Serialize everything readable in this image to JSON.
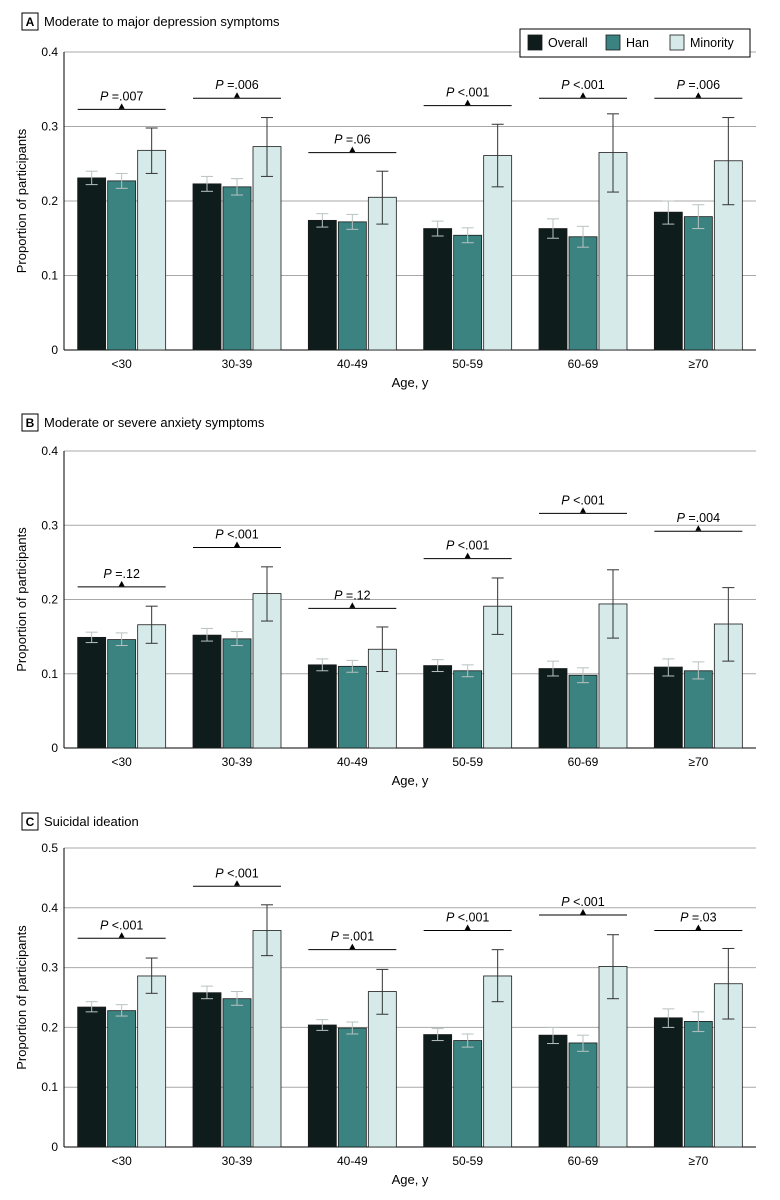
{
  "colors": {
    "Overall": "#0f1c1c",
    "Han": "#3b8380",
    "Minority": "#d6eaea",
    "grid": "#a8a8a8"
  },
  "legend": [
    "Overall",
    "Han",
    "Minority"
  ],
  "chart_data": [
    {
      "type": "bar",
      "letter": "A",
      "title": "Moderate to major depression symptoms",
      "xlabel": "Age, y",
      "ylabel": "Proportion of participants",
      "ylim": [
        0,
        0.4
      ],
      "yticks": [
        "0",
        "0.1",
        "0.2",
        "0.3",
        "0.4"
      ],
      "categories": [
        "<30",
        "30-39",
        "40-49",
        "50-59",
        "60-69",
        "≥70"
      ],
      "series": [
        {
          "name": "Overall",
          "values": [
            0.231,
            0.223,
            0.174,
            0.163,
            0.163,
            0.185
          ],
          "err_low": [
            0.222,
            0.213,
            0.165,
            0.153,
            0.15,
            0.169
          ],
          "err_high": [
            0.24,
            0.233,
            0.183,
            0.173,
            0.176,
            0.2
          ]
        },
        {
          "name": "Han",
          "values": [
            0.227,
            0.219,
            0.172,
            0.154,
            0.152,
            0.179
          ],
          "err_low": [
            0.217,
            0.208,
            0.162,
            0.144,
            0.138,
            0.163
          ],
          "err_high": [
            0.237,
            0.23,
            0.182,
            0.164,
            0.166,
            0.195
          ]
        },
        {
          "name": "Minority",
          "values": [
            0.268,
            0.273,
            0.205,
            0.261,
            0.265,
            0.254
          ],
          "err_low": [
            0.237,
            0.233,
            0.169,
            0.219,
            0.212,
            0.195
          ],
          "err_high": [
            0.298,
            0.312,
            0.24,
            0.303,
            0.317,
            0.312
          ]
        }
      ],
      "pvalues": [
        {
          "p": "P",
          "v": " =.007",
          "y": 0.323
        },
        {
          "p": "P",
          "v": " =.006",
          "y": 0.338
        },
        {
          "p": "P",
          "v": " =.06",
          "y": 0.265
        },
        {
          "p": "P",
          "v": " <.001",
          "y": 0.328
        },
        {
          "p": "P",
          "v": " <.001",
          "y": 0.338
        },
        {
          "p": "P",
          "v": " =.006",
          "y": 0.338
        }
      ]
    },
    {
      "type": "bar",
      "letter": "B",
      "title": "Moderate or severe anxiety symptoms",
      "xlabel": "Age, y",
      "ylabel": "Proportion of participants",
      "ylim": [
        0,
        0.4
      ],
      "yticks": [
        "0",
        "0.1",
        "0.2",
        "0.3",
        "0.4"
      ],
      "categories": [
        "<30",
        "30-39",
        "40-49",
        "50-59",
        "60-69",
        "≥70"
      ],
      "series": [
        {
          "name": "Overall",
          "values": [
            0.149,
            0.152,
            0.112,
            0.111,
            0.107,
            0.109
          ],
          "err_low": [
            0.142,
            0.144,
            0.104,
            0.103,
            0.097,
            0.097
          ],
          "err_high": [
            0.156,
            0.161,
            0.12,
            0.119,
            0.117,
            0.12
          ]
        },
        {
          "name": "Han",
          "values": [
            0.146,
            0.147,
            0.11,
            0.104,
            0.098,
            0.104
          ],
          "err_low": [
            0.138,
            0.138,
            0.102,
            0.096,
            0.088,
            0.093
          ],
          "err_high": [
            0.155,
            0.157,
            0.118,
            0.112,
            0.108,
            0.116
          ]
        },
        {
          "name": "Minority",
          "values": [
            0.166,
            0.208,
            0.133,
            0.191,
            0.194,
            0.167
          ],
          "err_low": [
            0.141,
            0.171,
            0.103,
            0.153,
            0.148,
            0.117
          ],
          "err_high": [
            0.191,
            0.244,
            0.163,
            0.229,
            0.24,
            0.216
          ]
        }
      ],
      "pvalues": [
        {
          "p": "P",
          "v": " =.12",
          "y": 0.217
        },
        {
          "p": "P",
          "v": " <.001",
          "y": 0.27
        },
        {
          "p": "P",
          "v": " =.12",
          "y": 0.188
        },
        {
          "p": "P",
          "v": " <.001",
          "y": 0.255
        },
        {
          "p": "P",
          "v": " <.001",
          "y": 0.316
        },
        {
          "p": "P",
          "v": " =.004",
          "y": 0.292
        }
      ]
    },
    {
      "type": "bar",
      "letter": "C",
      "title": "Suicidal ideation",
      "xlabel": "Age, y",
      "ylabel": "Proportion of participants",
      "ylim": [
        0,
        0.5
      ],
      "yticks": [
        "0",
        "0.1",
        "0.2",
        "0.3",
        "0.4",
        "0.5"
      ],
      "categories": [
        "<30",
        "30-39",
        "40-49",
        "50-59",
        "60-69",
        "≥70"
      ],
      "series": [
        {
          "name": "Overall",
          "values": [
            0.234,
            0.258,
            0.204,
            0.188,
            0.187,
            0.216
          ],
          "err_low": [
            0.226,
            0.248,
            0.195,
            0.178,
            0.173,
            0.2
          ],
          "err_high": [
            0.243,
            0.269,
            0.213,
            0.198,
            0.2,
            0.231
          ]
        },
        {
          "name": "Han",
          "values": [
            0.228,
            0.248,
            0.199,
            0.178,
            0.174,
            0.21
          ],
          "err_low": [
            0.219,
            0.237,
            0.189,
            0.167,
            0.16,
            0.193
          ],
          "err_high": [
            0.238,
            0.26,
            0.209,
            0.189,
            0.187,
            0.226
          ]
        },
        {
          "name": "Minority",
          "values": [
            0.286,
            0.362,
            0.26,
            0.286,
            0.302,
            0.273
          ],
          "err_low": [
            0.257,
            0.32,
            0.222,
            0.243,
            0.248,
            0.214
          ],
          "err_high": [
            0.316,
            0.405,
            0.297,
            0.33,
            0.355,
            0.332
          ]
        }
      ],
      "pvalues": [
        {
          "p": "P",
          "v": " <.001",
          "y": 0.349
        },
        {
          "p": "P",
          "v": " <.001",
          "y": 0.436
        },
        {
          "p": "P",
          "v": " =.001",
          "y": 0.33
        },
        {
          "p": "P",
          "v": " <.001",
          "y": 0.362
        },
        {
          "p": "P",
          "v": " <.001",
          "y": 0.388
        },
        {
          "p": "P",
          "v": " =.03",
          "y": 0.362
        }
      ]
    }
  ]
}
